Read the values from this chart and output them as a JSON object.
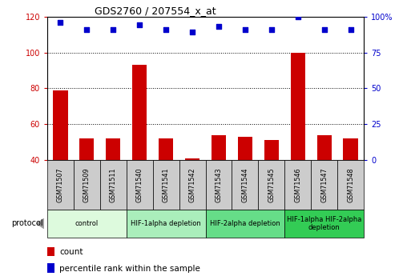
{
  "title": "GDS2760 / 207554_x_at",
  "samples": [
    "GSM71507",
    "GSM71509",
    "GSM71511",
    "GSM71540",
    "GSM71541",
    "GSM71542",
    "GSM71543",
    "GSM71544",
    "GSM71545",
    "GSM71546",
    "GSM71547",
    "GSM71548"
  ],
  "counts": [
    79,
    52,
    52,
    93,
    52,
    41,
    54,
    53,
    51,
    100,
    54,
    52
  ],
  "percentiles": [
    96,
    91,
    91,
    94,
    91,
    89,
    93,
    91,
    91,
    100,
    91,
    91
  ],
  "ylim_left": [
    40,
    120
  ],
  "ylim_right": [
    0,
    100
  ],
  "yticks_left": [
    40,
    60,
    80,
    100,
    120
  ],
  "yticks_right": [
    0,
    25,
    50,
    75,
    100
  ],
  "ytick_labels_right": [
    "0",
    "25",
    "50",
    "75",
    "100%"
  ],
  "bar_color": "#cc0000",
  "dot_color": "#0000cc",
  "grid_color": "#000000",
  "protocol_groups": [
    {
      "label": "control",
      "start": 0,
      "end": 2,
      "color": "#ddfadd"
    },
    {
      "label": "HIF-1alpha depletion",
      "start": 3,
      "end": 5,
      "color": "#aaeebb"
    },
    {
      "label": "HIF-2alpha depletion",
      "start": 6,
      "end": 8,
      "color": "#66dd88"
    },
    {
      "label": "HIF-1alpha HIF-2alpha\ndepletion",
      "start": 9,
      "end": 11,
      "color": "#33cc55"
    }
  ],
  "tick_color_left": "#cc0000",
  "tick_color_right": "#0000cc",
  "sample_bg": "#cccccc",
  "protocol_label": "protocol",
  "legend_count": "count",
  "legend_percentile": "percentile rank within the sample"
}
